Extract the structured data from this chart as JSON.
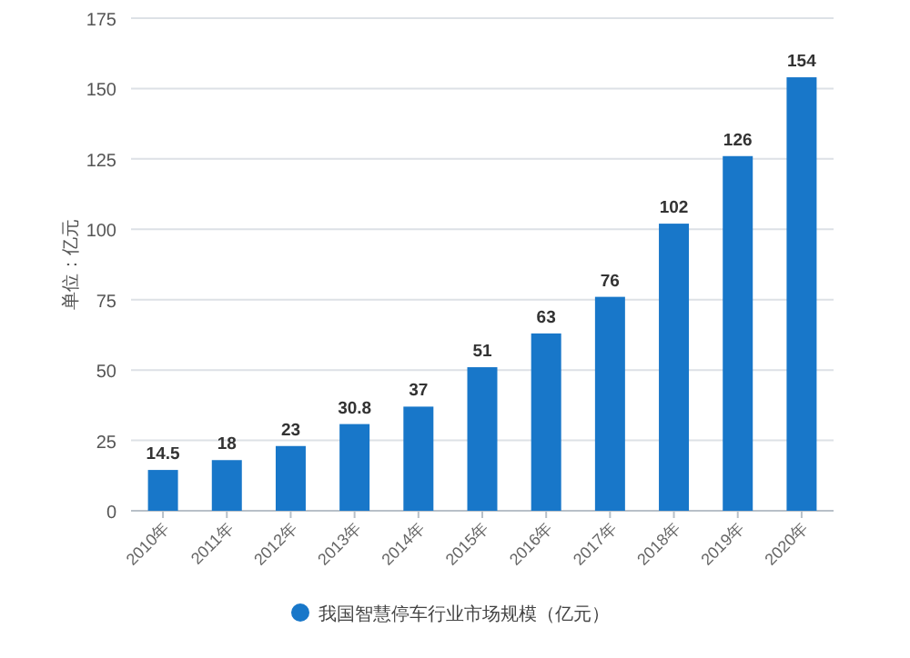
{
  "chart_data": {
    "type": "bar",
    "ylabel": "单位：亿元",
    "categories": [
      "2010年",
      "2011年",
      "2012年",
      "2013年",
      "2014年",
      "2015年",
      "2016年",
      "2017年",
      "2018年",
      "2019年",
      "2020年"
    ],
    "series": [
      {
        "name": "我国智慧停车行业市场规模（亿元）",
        "color": "#1877c9",
        "values": [
          14.5,
          18,
          23,
          30.8,
          37,
          51,
          63,
          76,
          102,
          126,
          154
        ]
      }
    ],
    "ylim": [
      0,
      175
    ],
    "yticks": [
      0,
      25,
      50,
      75,
      100,
      125,
      150,
      175
    ],
    "grid": "y",
    "legend": "bottom",
    "data_labels": true
  }
}
